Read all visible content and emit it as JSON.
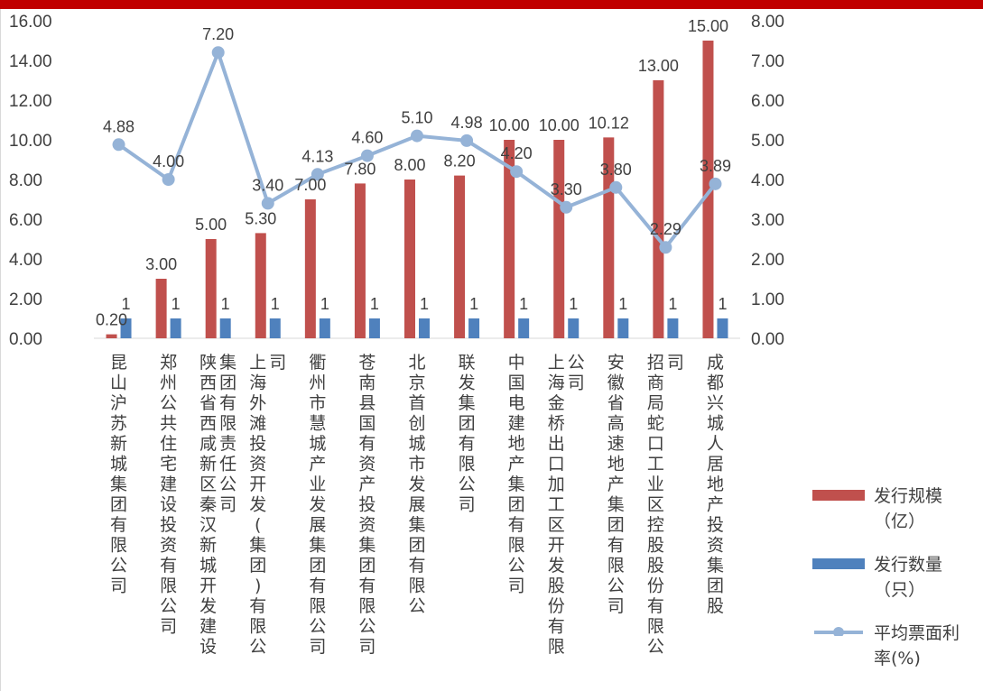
{
  "chart_data": {
    "type": "bar+line",
    "categories": [
      "昆山沪苏新城集团有限公司",
      "郑州公共住宅建设投资有限公司",
      "陕西省西咸新区秦汉新城开发建设集团有限责任公司",
      "上海外滩投资开发(集团)有限公司",
      "衢州市慧城产业发展集团有限公司",
      "苍南县国有资产投资集团有限公司",
      "北京首创城市发展集团有限公",
      "联发集团有限公司",
      "中国电建地产集团有限公司",
      "上海金桥出口加工区开发股份有限公司",
      "安徽省高速地产集团有限公司",
      "招商局蛇口工业区控股股份有限公司",
      "成都兴城人居地产投资集团股"
    ],
    "series": [
      {
        "name": "发行规模（亿）",
        "axis": "left",
        "type": "bar",
        "color": "#c0504d",
        "values": [
          0.2,
          3.0,
          5.0,
          5.3,
          7.0,
          7.8,
          8.0,
          8.2,
          10.0,
          10.0,
          10.12,
          13.0,
          15.0
        ],
        "labels": [
          "0.20",
          "3.00",
          "5.00",
          "5.30",
          "7.00",
          "7.80",
          "8.00",
          "8.20",
          "10.00",
          "10.00",
          "10.12",
          "13.00",
          "15.00"
        ]
      },
      {
        "name": "发行数量（只）",
        "axis": "left",
        "type": "bar",
        "color": "#4f81bd",
        "values": [
          1,
          1,
          1,
          1,
          1,
          1,
          1,
          1,
          1,
          1,
          1,
          1,
          1
        ],
        "labels": [
          "1",
          "1",
          "1",
          "1",
          "1",
          "1",
          "1",
          "1",
          "1",
          "1",
          "1",
          "1",
          "1"
        ]
      },
      {
        "name": "平均票面利率(%)",
        "axis": "right",
        "type": "line",
        "color": "#95b3d7",
        "values": [
          4.88,
          4.0,
          7.2,
          3.4,
          4.13,
          4.6,
          5.1,
          4.98,
          4.2,
          3.3,
          3.8,
          2.29,
          3.89
        ],
        "labels": [
          "4.88",
          "4.00",
          "7.20",
          "3.40",
          "4.13",
          "4.60",
          "5.10",
          "4.98",
          "4.20",
          "3.30",
          "3.80",
          "2.29",
          "3.89"
        ]
      }
    ],
    "y_left": {
      "min": 0,
      "max": 16,
      "step": 2,
      "ticks": [
        "0.00",
        "2.00",
        "4.00",
        "6.00",
        "8.00",
        "10.00",
        "12.00",
        "14.00",
        "16.00"
      ]
    },
    "y_right": {
      "min": 0,
      "max": 8,
      "step": 1,
      "ticks": [
        "0.00",
        "1.00",
        "2.00",
        "3.00",
        "4.00",
        "5.00",
        "6.00",
        "7.00",
        "8.00"
      ]
    },
    "grid": false,
    "legend_position": "right"
  },
  "legend": [
    {
      "lines": [
        "发行规模",
        "（亿）"
      ],
      "color": "#c0504d",
      "kind": "bar"
    },
    {
      "lines": [
        "发行数量",
        "（只）"
      ],
      "color": "#4f81bd",
      "kind": "bar"
    },
    {
      "lines": [
        "平均票面利",
        "率(%)"
      ],
      "color": "#95b3d7",
      "kind": "line"
    }
  ],
  "colors": {
    "header_bar": "#c00000",
    "axis": "#d9d9d9",
    "text": "#404040"
  }
}
